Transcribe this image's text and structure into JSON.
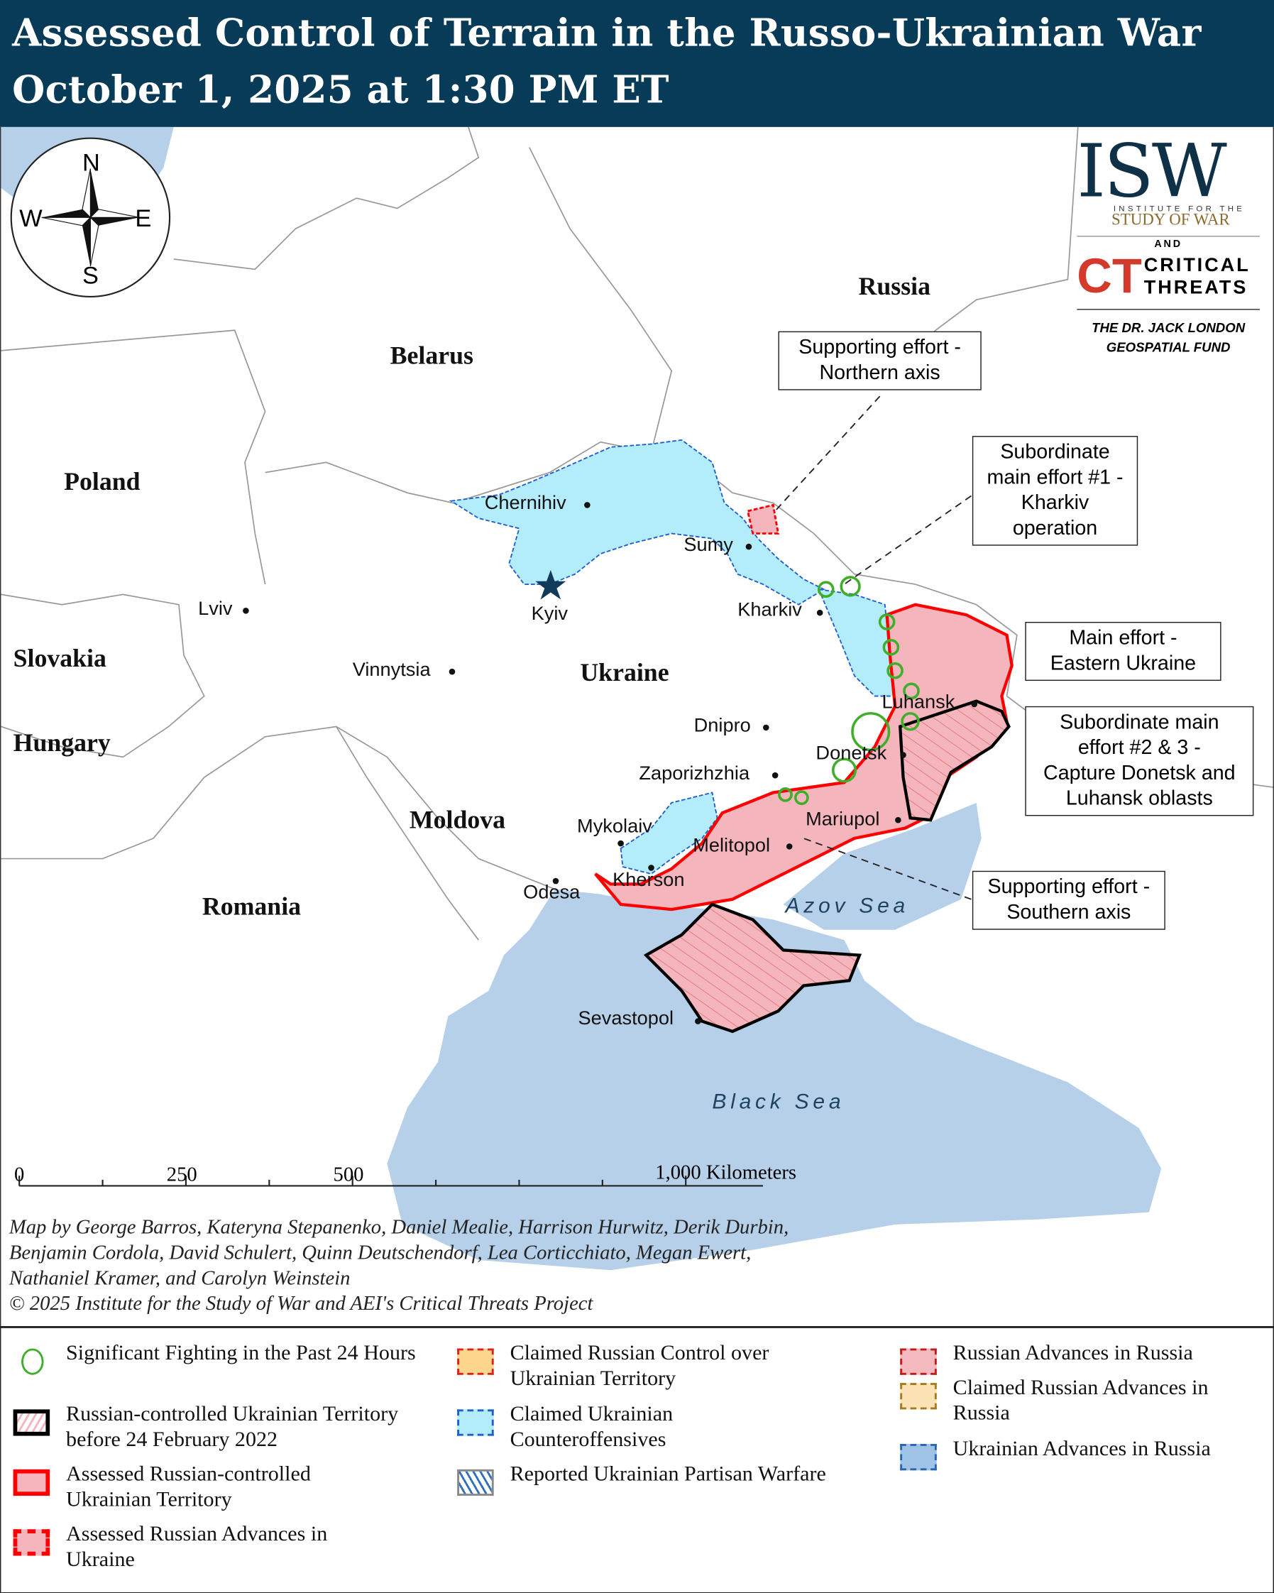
{
  "header": {
    "title_line1": "Assessed Control of Terrain in the Russo-Ukrainian War",
    "title_line2": "October 1, 2025 at 1:30 PM ET"
  },
  "logo": {
    "isw": "ISW",
    "isw_sub1": "INSTITUTE FOR THE",
    "isw_sub2": "STUDY OF WAR",
    "and": "AND",
    "ct": "CT",
    "ct_line1": "CRITICAL",
    "ct_line2": "THREATS",
    "fund_line1": "THE DR. JACK LONDON",
    "fund_line2": "GEOSPATIAL FUND"
  },
  "compass": {
    "n": "N",
    "s": "S",
    "e": "E",
    "w": "W"
  },
  "countries": [
    "Russia",
    "Belarus",
    "Poland",
    "Slovakia",
    "Hungary",
    "Moldova",
    "Romania",
    "Ukraine"
  ],
  "cities": [
    "Chernihiv",
    "Sumy",
    "Kyiv",
    "Kharkiv",
    "Lviv",
    "Vinnytsia",
    "Dnipro",
    "Luhansk",
    "Donetsk",
    "Zaporizhzhia",
    "Mariupol",
    "Mykolaiv",
    "Melitopol",
    "Kherson",
    "Odesa",
    "Sevastopol"
  ],
  "seas": [
    "Azov Sea",
    "Black Sea"
  ],
  "callouts": [
    {
      "lines": [
        "Supporting effort -",
        "Northern axis"
      ]
    },
    {
      "lines": [
        "Subordinate",
        "main effort #1 -",
        "Kharkiv",
        "operation"
      ]
    },
    {
      "lines": [
        "Main effort -",
        "Eastern Ukraine"
      ]
    },
    {
      "lines": [
        "Subordinate main",
        "effort #2 & 3 -",
        "Capture Donetsk and",
        "Luhansk oblasts"
      ]
    },
    {
      "lines": [
        "Supporting effort -",
        "Southern axis"
      ]
    }
  ],
  "scale": {
    "labels": [
      "0",
      "250",
      "500",
      "1,000 Kilometers"
    ]
  },
  "credits": [
    "Map by George Barros, Kateryna Stepanenko, Daniel Mealie, Harrison Hurwitz, Derik Durbin,",
    "Benjamin Cordola, David Schulert, Quinn Deutschendorf, Lea Corticchiato, Megan Ewert,",
    "Nathaniel Kramer, and Carolyn Weinstein",
    "© 2025 Institute for the Study of War and AEI's Critical Threats Project"
  ],
  "legend": [
    {
      "label": "Significant Fighting in the Past 24 Hours",
      "color": "#3fae29"
    },
    {
      "label": "Russian-controlled Ukrainian Territory before 24 February 2022",
      "color": "#000000"
    },
    {
      "label": "Assessed Russian-controlled Ukrainian Territory",
      "color": "#ff0000"
    },
    {
      "label": "Assessed Russian Advances in Ukraine",
      "color": "#ff0000"
    },
    {
      "label": "Claimed Russian Control over Ukrainian Territory",
      "color": "#fdd58c"
    },
    {
      "label": "Claimed Ukrainian Counteroffensives",
      "color": "#b3ecfb"
    },
    {
      "label": "Reported Ukrainian Partisan Warfare",
      "color": "#2f6fc2"
    },
    {
      "label": "Russian Advances in Russia",
      "color": "#f4b9bf"
    },
    {
      "label": "Claimed Russian Advances in Russia",
      "color": "#fbe3b5"
    },
    {
      "label": "Ukrainian Advances in Russia",
      "color": "#9fc3e6"
    }
  ],
  "colors": {
    "header": "#073b57",
    "water": "#b7d0ea",
    "occupied": "#f5b5bc",
    "front": "#ff0000",
    "counteroffensive": "#b3ecfb"
  }
}
